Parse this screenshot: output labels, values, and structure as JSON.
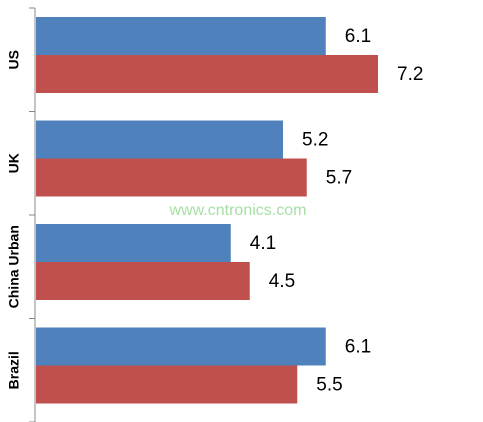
{
  "chart_data": {
    "type": "bar",
    "orientation": "horizontal",
    "categories": [
      "US",
      "UK",
      "China Urban",
      "Brazil"
    ],
    "series": [
      {
        "color": "#4f81bd",
        "values": [
          6.1,
          5.2,
          4.1,
          6.1
        ]
      },
      {
        "color": "#c0504d",
        "values": [
          7.2,
          5.7,
          4.5,
          5.5
        ]
      }
    ],
    "annotation": "www.cntronics.com"
  }
}
